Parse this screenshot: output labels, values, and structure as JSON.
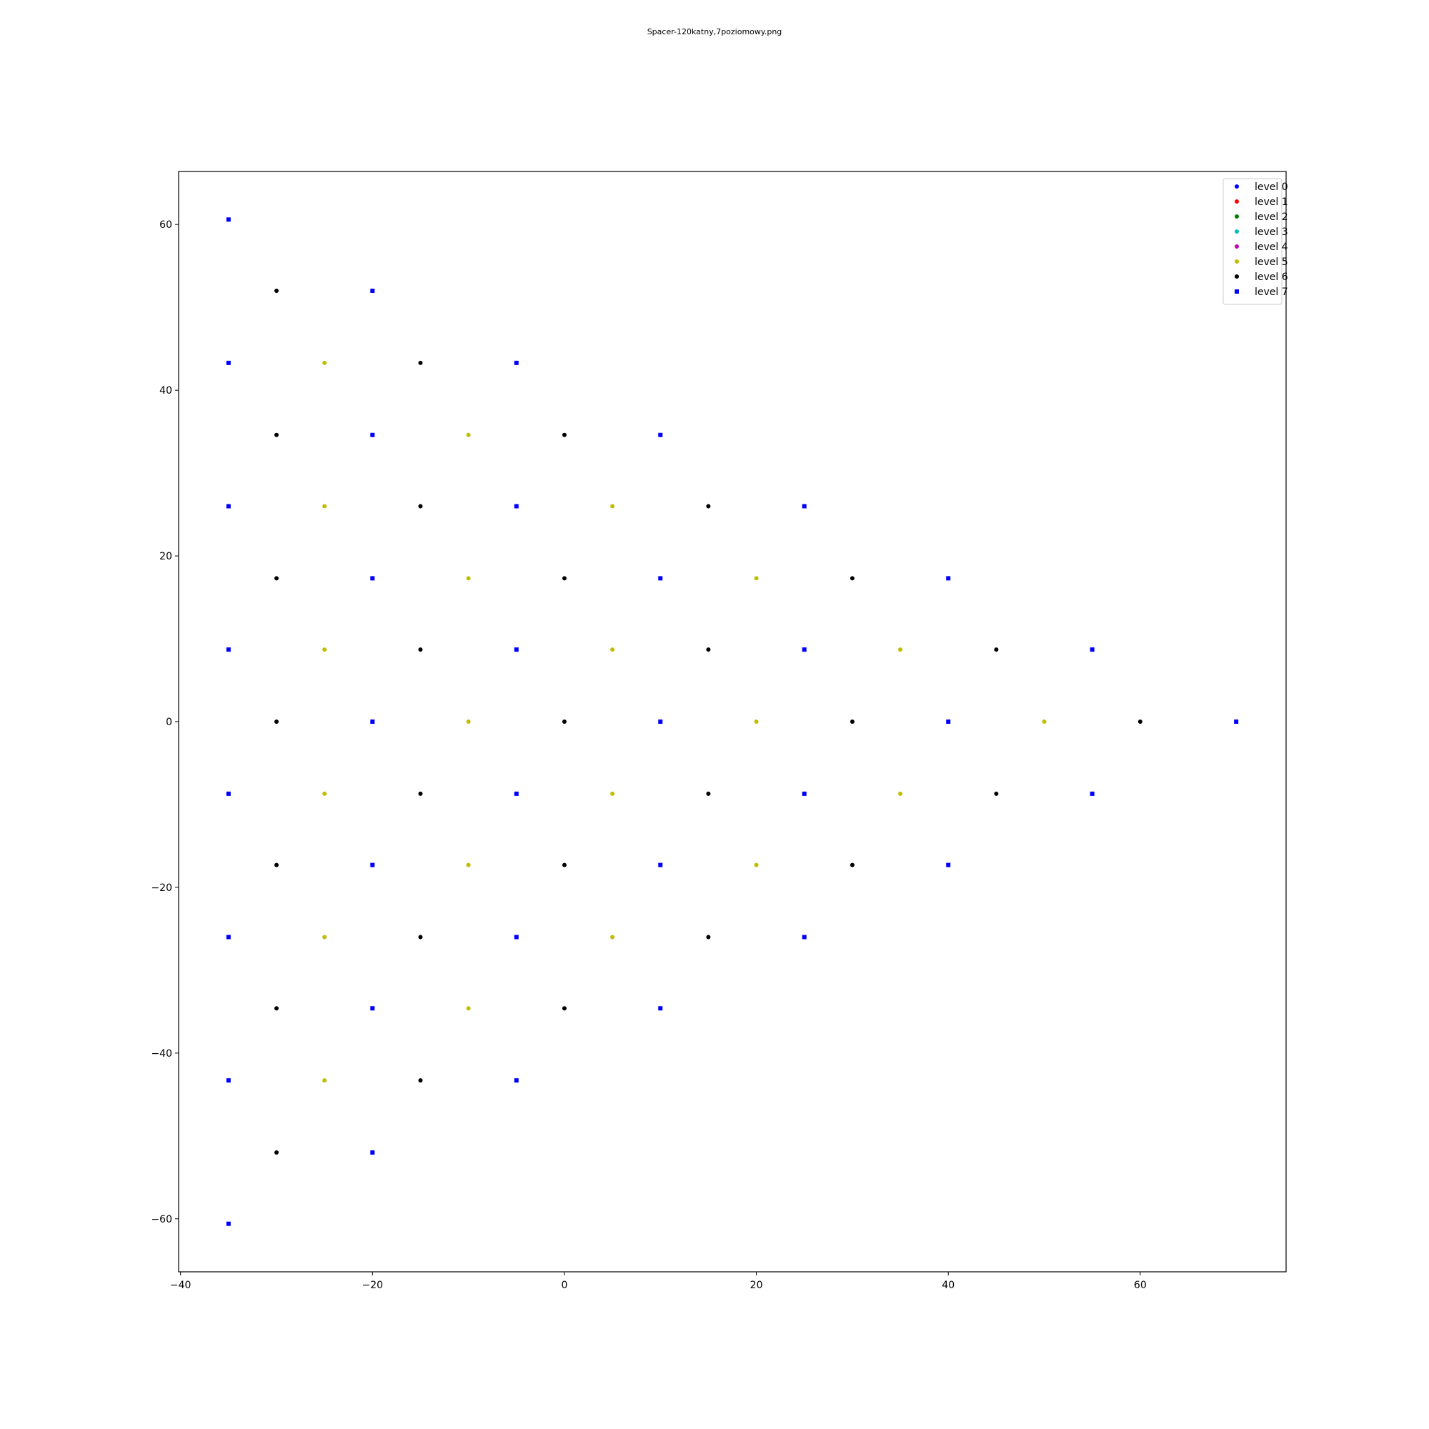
{
  "chart_data": {
    "type": "scatter",
    "title": "Spacer-120katny,7poziomowy.png",
    "xlabel": "",
    "ylabel": "",
    "xlim": [
      -40.2,
      75.2
    ],
    "ylim": [
      -66.4,
      66.4
    ],
    "xticks": [
      -40,
      -20,
      0,
      20,
      40,
      60
    ],
    "yticks": [
      -60,
      -40,
      -20,
      0,
      20,
      40,
      60
    ],
    "xtick_labels": [
      "−40",
      "−20",
      "0",
      "20",
      "40",
      "60"
    ],
    "ytick_labels": [
      "−60",
      "−40",
      "−20",
      "0",
      "20",
      "40",
      "60"
    ],
    "grid": false,
    "legend_position": "top-right",
    "series": [
      {
        "name": "level 0",
        "color": "#0000ff",
        "marker": "circle",
        "points": []
      },
      {
        "name": "level 1",
        "color": "#ff0000",
        "marker": "circle",
        "points": []
      },
      {
        "name": "level 2",
        "color": "#008000",
        "marker": "circle",
        "points": []
      },
      {
        "name": "level 3",
        "color": "#00bfbf",
        "marker": "circle",
        "points": []
      },
      {
        "name": "level 4",
        "color": "#bf00bf",
        "marker": "circle",
        "points": []
      },
      {
        "name": "level 5",
        "color": "#bfbf00",
        "marker": "circle",
        "points": [
          [
            -25,
            43.3
          ],
          [
            -10,
            34.6
          ],
          [
            -25,
            26.0
          ],
          [
            5,
            26.0
          ],
          [
            -10,
            17.3
          ],
          [
            20,
            17.3
          ],
          [
            -25,
            8.7
          ],
          [
            5,
            8.7
          ],
          [
            35,
            8.7
          ],
          [
            -10,
            0
          ],
          [
            20,
            0
          ],
          [
            50,
            0
          ],
          [
            -25,
            -8.7
          ],
          [
            5,
            -8.7
          ],
          [
            35,
            -8.7
          ],
          [
            -10,
            -17.3
          ],
          [
            20,
            -17.3
          ],
          [
            -25,
            -26.0
          ],
          [
            5,
            -26.0
          ],
          [
            -10,
            -34.6
          ],
          [
            -25,
            -43.3
          ]
        ]
      },
      {
        "name": "level 6",
        "color": "#000000",
        "marker": "circle",
        "points": [
          [
            -30,
            52.0
          ],
          [
            -15,
            43.3
          ],
          [
            -30,
            34.6
          ],
          [
            0,
            34.6
          ],
          [
            -15,
            26.0
          ],
          [
            15,
            26.0
          ],
          [
            -30,
            17.3
          ],
          [
            0,
            17.3
          ],
          [
            30,
            17.3
          ],
          [
            -15,
            8.7
          ],
          [
            15,
            8.7
          ],
          [
            45,
            8.7
          ],
          [
            -30,
            0
          ],
          [
            0,
            0
          ],
          [
            30,
            0
          ],
          [
            60,
            0
          ],
          [
            -15,
            -8.7
          ],
          [
            15,
            -8.7
          ],
          [
            45,
            -8.7
          ],
          [
            -30,
            -17.3
          ],
          [
            0,
            -17.3
          ],
          [
            30,
            -17.3
          ],
          [
            -15,
            -26.0
          ],
          [
            15,
            -26.0
          ],
          [
            -30,
            -34.6
          ],
          [
            0,
            -34.6
          ],
          [
            -15,
            -43.3
          ],
          [
            -30,
            -52.0
          ]
        ]
      },
      {
        "name": "level 7",
        "color": "#0000ff",
        "marker": "square",
        "points": [
          [
            -35,
            60.6
          ],
          [
            -20,
            52.0
          ],
          [
            -35,
            43.3
          ],
          [
            -5,
            43.3
          ],
          [
            -20,
            34.6
          ],
          [
            10,
            34.6
          ],
          [
            -35,
            26.0
          ],
          [
            -5,
            26.0
          ],
          [
            25,
            26.0
          ],
          [
            -20,
            17.3
          ],
          [
            10,
            17.3
          ],
          [
            40,
            17.3
          ],
          [
            -35,
            8.7
          ],
          [
            -5,
            8.7
          ],
          [
            25,
            8.7
          ],
          [
            55,
            8.7
          ],
          [
            -20,
            0
          ],
          [
            10,
            0
          ],
          [
            40,
            0
          ],
          [
            70,
            0
          ],
          [
            -35,
            -8.7
          ],
          [
            -5,
            -8.7
          ],
          [
            25,
            -8.7
          ],
          [
            55,
            -8.7
          ],
          [
            -20,
            -17.3
          ],
          [
            10,
            -17.3
          ],
          [
            40,
            -17.3
          ],
          [
            -35,
            -26.0
          ],
          [
            -5,
            -26.0
          ],
          [
            25,
            -26.0
          ],
          [
            -20,
            -34.6
          ],
          [
            10,
            -34.6
          ],
          [
            -35,
            -43.3
          ],
          [
            -5,
            -43.3
          ],
          [
            -20,
            -52.0
          ],
          [
            -35,
            -60.6
          ]
        ]
      }
    ]
  }
}
